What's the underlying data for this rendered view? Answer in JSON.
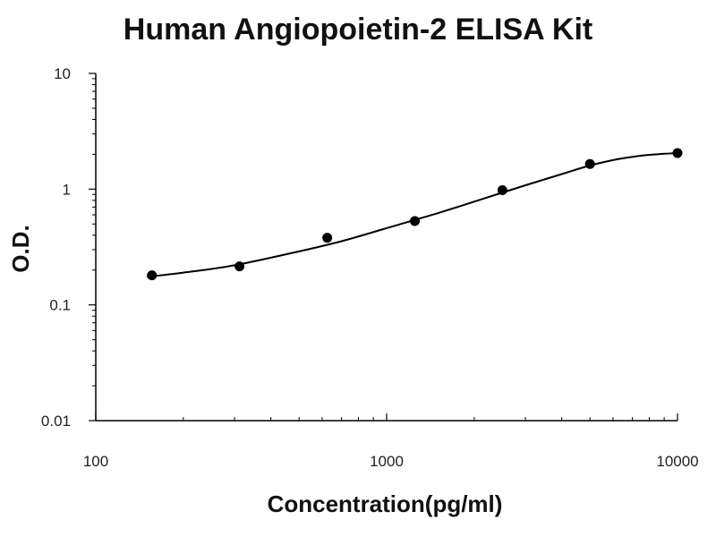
{
  "chart_data": {
    "type": "scatter",
    "title": "Human Angiopoietin-2 ELISA Kit",
    "xlabel": "Concentration(pg/ml)",
    "ylabel": "O.D.",
    "x_scale": "log",
    "y_scale": "log",
    "xlim": [
      100,
      10000
    ],
    "ylim": [
      0.01,
      10
    ],
    "x_tick_labels": [
      "100",
      "1000",
      "10000"
    ],
    "y_tick_labels": [
      "10",
      "1",
      "0.1",
      "0.01"
    ],
    "grid": false,
    "legend": "none",
    "colors": {
      "points": "#000000",
      "curve": "#000000",
      "axis": "#000000"
    },
    "series": [
      {
        "x": [
          156,
          312,
          625,
          1250,
          2500,
          5000,
          10000
        ],
        "y": [
          0.18,
          0.215,
          0.38,
          0.53,
          0.98,
          1.65,
          2.05
        ]
      }
    ],
    "curve": {
      "x": [
        150,
        200,
        300,
        500,
        700,
        1000,
        1500,
        2000,
        3000,
        4000,
        5000,
        6000,
        7000,
        8000,
        9000,
        10000
      ],
      "y": [
        0.175,
        0.19,
        0.22,
        0.29,
        0.355,
        0.46,
        0.62,
        0.78,
        1.08,
        1.35,
        1.6,
        1.78,
        1.9,
        1.98,
        2.02,
        2.05
      ]
    }
  }
}
